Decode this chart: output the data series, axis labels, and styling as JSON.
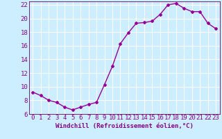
{
  "x": [
    0,
    1,
    2,
    3,
    4,
    5,
    6,
    7,
    8,
    9,
    10,
    11,
    12,
    13,
    14,
    15,
    16,
    17,
    18,
    19,
    20,
    21,
    22,
    23
  ],
  "y": [
    9.2,
    8.7,
    8.0,
    7.7,
    7.0,
    6.6,
    7.0,
    7.4,
    7.7,
    10.3,
    13.0,
    16.3,
    17.9,
    19.3,
    19.4,
    19.6,
    20.6,
    22.0,
    22.2,
    21.5,
    21.0,
    21.0,
    19.3,
    18.5
  ],
  "line_color": "#990099",
  "marker": "D",
  "marker_size": 2,
  "bg_color": "#cceeff",
  "grid_color": "#ffffff",
  "xlabel": "Windchill (Refroidissement éolien,°C)",
  "ylim": [
    6,
    22.5
  ],
  "xlim": [
    -0.5,
    23.5
  ],
  "yticks": [
    6,
    8,
    10,
    12,
    14,
    16,
    18,
    20,
    22
  ],
  "xticks": [
    0,
    1,
    2,
    3,
    4,
    5,
    6,
    7,
    8,
    9,
    10,
    11,
    12,
    13,
    14,
    15,
    16,
    17,
    18,
    19,
    20,
    21,
    22,
    23
  ],
  "xlabel_fontsize": 6.5,
  "tick_fontsize": 6.5,
  "line_width": 1.0,
  "axes_color": "#880088",
  "spine_color": "#660066"
}
